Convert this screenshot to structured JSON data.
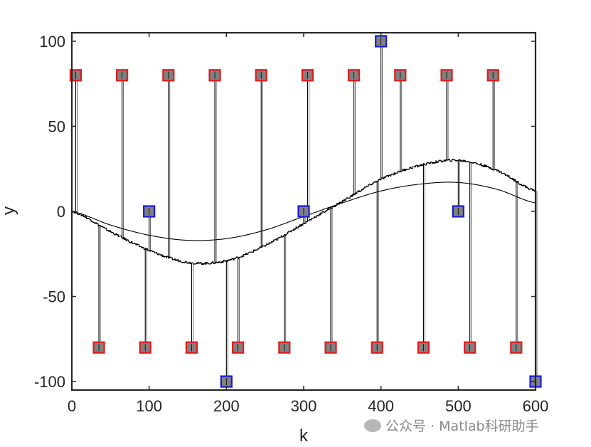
{
  "chart_data": {
    "type": "line",
    "xlabel": "k",
    "ylabel": "y",
    "xlim": [
      0,
      600
    ],
    "ylim": [
      -105,
      105
    ],
    "xticks": [
      0,
      100,
      200,
      300,
      400,
      500,
      600
    ],
    "yticks": [
      -100,
      -50,
      0,
      50,
      100
    ],
    "grid": false,
    "box": true,
    "colors": {
      "axes": "#262626",
      "lines": "#000000",
      "marker_fill": "#808080",
      "red_edge": "#e41a1c",
      "blue_edge": "#1a1adc"
    },
    "series": [
      {
        "style": "curve-smooth",
        "x": [
          0,
          50,
          100,
          150,
          200,
          250,
          300,
          350,
          400,
          450,
          500,
          550,
          600
        ],
        "y": [
          0,
          -8,
          -14,
          -17,
          -16,
          -11,
          -3,
          5,
          12,
          16,
          17,
          13,
          5
        ]
      },
      {
        "style": "curve-noisy",
        "x": [
          0,
          50,
          100,
          150,
          200,
          250,
          300,
          350,
          400,
          450,
          500,
          550,
          600
        ],
        "y": [
          0,
          -12,
          -23,
          -30,
          -29,
          -20,
          -7,
          6,
          19,
          27,
          30,
          24,
          12
        ]
      },
      {
        "style": "stem-red-square",
        "x": [
          5,
          65,
          125,
          185,
          245,
          305,
          365,
          425,
          485,
          545,
          35,
          95,
          155,
          215,
          275,
          335,
          395,
          455,
          515,
          575
        ],
        "y": [
          80,
          80,
          80,
          80,
          80,
          80,
          80,
          80,
          80,
          80,
          -80,
          -80,
          -80,
          -80,
          -80,
          -80,
          -80,
          -80,
          -80,
          -80
        ]
      },
      {
        "style": "stem-blue-square",
        "x": [
          100,
          200,
          300,
          400,
          500,
          600
        ],
        "y": [
          0,
          -100,
          0,
          100,
          0,
          -100
        ]
      }
    ]
  },
  "watermark": {
    "text": "公众号 · Matlab科研助手",
    "icon": "wechat-icon"
  }
}
